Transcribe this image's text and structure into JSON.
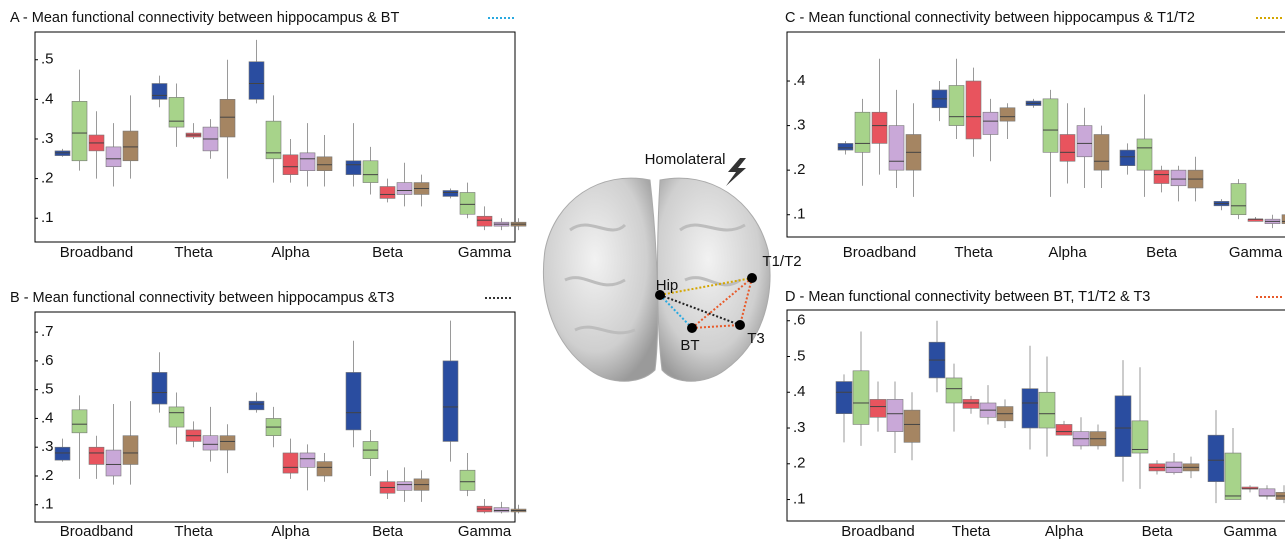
{
  "chart_data": [
    {
      "type": "box",
      "title": "A - Mean functional connectivity between hippocampus & BT",
      "marker_color": "#29a9e0",
      "categories": [
        "Broadband",
        "Theta",
        "Alpha",
        "Beta",
        "Gamma"
      ],
      "ylim": [
        0.04,
        0.57
      ],
      "yticks": [
        {
          "value": 0.1,
          "label": ".1"
        },
        {
          "value": 0.2,
          "label": ".2"
        },
        {
          "value": 0.3,
          "label": ".3"
        },
        {
          "value": 0.4,
          "label": ".4"
        },
        {
          "value": 0.5,
          "label": ".5"
        }
      ],
      "series": [
        {
          "color": "#2a4da0",
          "values": [
            [
              0.255,
              0.258,
              0.265,
              0.27,
              0.275
            ],
            [
              0.38,
              0.4,
              0.41,
              0.44,
              0.46
            ],
            [
              0.39,
              0.4,
              0.44,
              0.495,
              0.55
            ],
            [
              0.18,
              0.21,
              0.235,
              0.245,
              0.34
            ],
            [
              0.15,
              0.155,
              0.165,
              0.17,
              0.175
            ]
          ]
        },
        {
          "color": "#a7d38a",
          "values": [
            [
              0.22,
              0.245,
              0.315,
              0.395,
              0.475
            ],
            [
              0.28,
              0.33,
              0.345,
              0.405,
              0.44
            ],
            [
              0.19,
              0.25,
              0.265,
              0.345,
              0.41
            ],
            [
              0.16,
              0.19,
              0.21,
              0.245,
              0.28
            ],
            [
              0.1,
              0.11,
              0.135,
              0.165,
              0.19
            ]
          ]
        },
        {
          "color": "#e8545e",
          "values": [
            [
              0.2,
              0.27,
              0.29,
              0.31,
              0.37
            ],
            [
              0.3,
              0.305,
              0.31,
              0.315,
              0.34
            ],
            [
              0.19,
              0.21,
              0.23,
              0.26,
              0.3
            ],
            [
              0.14,
              0.15,
              0.16,
              0.18,
              0.2
            ],
            [
              0.07,
              0.08,
              0.095,
              0.105,
              0.13
            ]
          ]
        },
        {
          "color": "#c9a8d8",
          "values": [
            [
              0.18,
              0.23,
              0.25,
              0.28,
              0.34
            ],
            [
              0.25,
              0.27,
              0.3,
              0.33,
              0.35
            ],
            [
              0.18,
              0.22,
              0.25,
              0.265,
              0.34
            ],
            [
              0.13,
              0.16,
              0.17,
              0.19,
              0.24
            ],
            [
              0.07,
              0.08,
              0.085,
              0.09,
              0.1
            ]
          ]
        },
        {
          "color": "#a58562",
          "values": [
            [
              0.2,
              0.245,
              0.28,
              0.32,
              0.41
            ],
            [
              0.2,
              0.305,
              0.355,
              0.4,
              0.5
            ],
            [
              0.18,
              0.22,
              0.235,
              0.255,
              0.31
            ],
            [
              0.13,
              0.16,
              0.175,
              0.19,
              0.21
            ],
            [
              0.07,
              0.08,
              0.085,
              0.09,
              0.1
            ]
          ]
        }
      ]
    },
    {
      "type": "box",
      "title": "B - Mean functional connectivity between hippocampus &T3",
      "marker_color": "#333333",
      "categories": [
        "Broadband",
        "Theta",
        "Alpha",
        "Beta",
        "Gamma"
      ],
      "ylim": [
        0.04,
        0.77
      ],
      "yticks": [
        {
          "value": 0.1,
          "label": ".1"
        },
        {
          "value": 0.2,
          "label": ".2"
        },
        {
          "value": 0.3,
          "label": ".3"
        },
        {
          "value": 0.4,
          "label": ".4"
        },
        {
          "value": 0.5,
          "label": ".5"
        },
        {
          "value": 0.6,
          "label": ".6"
        },
        {
          "value": 0.7,
          "label": ".7"
        }
      ],
      "series": [
        {
          "color": "#2a4da0",
          "values": [
            [
              0.25,
              0.255,
              0.28,
              0.3,
              0.33
            ],
            [
              0.42,
              0.45,
              0.49,
              0.56,
              0.63
            ],
            [
              0.42,
              0.43,
              0.45,
              0.46,
              0.49
            ],
            [
              0.3,
              0.36,
              0.42,
              0.56,
              0.67
            ],
            [
              0.25,
              0.32,
              0.44,
              0.6,
              0.74
            ]
          ]
        },
        {
          "color": "#a7d38a",
          "values": [
            [
              0.19,
              0.35,
              0.38,
              0.43,
              0.48
            ],
            [
              0.31,
              0.37,
              0.42,
              0.44,
              0.49
            ],
            [
              0.3,
              0.34,
              0.37,
              0.4,
              0.44
            ],
            [
              0.2,
              0.26,
              0.29,
              0.32,
              0.36
            ],
            [
              0.13,
              0.15,
              0.18,
              0.22,
              0.28
            ]
          ]
        },
        {
          "color": "#e8545e",
          "values": [
            [
              0.19,
              0.24,
              0.28,
              0.3,
              0.34
            ],
            [
              0.3,
              0.32,
              0.34,
              0.36,
              0.39
            ],
            [
              0.19,
              0.21,
              0.23,
              0.28,
              0.33
            ],
            [
              0.12,
              0.14,
              0.16,
              0.18,
              0.22
            ],
            [
              0.07,
              0.075,
              0.085,
              0.095,
              0.12
            ]
          ]
        },
        {
          "color": "#c9a8d8",
          "values": [
            [
              0.17,
              0.2,
              0.24,
              0.29,
              0.45
            ],
            [
              0.25,
              0.29,
              0.31,
              0.34,
              0.44
            ],
            [
              0.15,
              0.23,
              0.26,
              0.28,
              0.31
            ],
            [
              0.11,
              0.15,
              0.17,
              0.18,
              0.23
            ],
            [
              0.07,
              0.075,
              0.08,
              0.09,
              0.11
            ]
          ]
        },
        {
          "color": "#a58562",
          "values": [
            [
              0.17,
              0.24,
              0.28,
              0.34,
              0.46
            ],
            [
              0.21,
              0.29,
              0.32,
              0.34,
              0.38
            ],
            [
              0.18,
              0.2,
              0.23,
              0.25,
              0.28
            ],
            [
              0.11,
              0.15,
              0.17,
              0.19,
              0.22
            ],
            [
              0.07,
              0.075,
              0.08,
              0.085,
              0.1
            ]
          ]
        }
      ]
    },
    {
      "type": "box",
      "title": "C - Mean functional connectivity between hippocampus & T1/T2",
      "marker_color": "#d4a600",
      "categories": [
        "Broadband",
        "Theta",
        "Alpha",
        "Beta",
        "Gamma"
      ],
      "ylim": [
        0.05,
        0.51
      ],
      "yticks": [
        {
          "value": 0.1,
          "label": ".1"
        },
        {
          "value": 0.2,
          "label": ".2"
        },
        {
          "value": 0.3,
          "label": ".3"
        },
        {
          "value": 0.4,
          "label": ".4"
        }
      ],
      "series": [
        {
          "color": "#2a4da0",
          "values": [
            [
              0.235,
              0.245,
              0.25,
              0.26,
              0.265
            ],
            [
              0.31,
              0.34,
              0.36,
              0.38,
              0.4
            ],
            [
              0.34,
              0.345,
              0.35,
              0.355,
              0.36
            ],
            [
              0.19,
              0.21,
              0.23,
              0.245,
              0.26
            ],
            [
              0.11,
              0.12,
              0.125,
              0.13,
              0.135
            ]
          ]
        },
        {
          "color": "#a7d38a",
          "values": [
            [
              0.165,
              0.24,
              0.26,
              0.33,
              0.36
            ],
            [
              0.27,
              0.3,
              0.32,
              0.39,
              0.45
            ],
            [
              0.14,
              0.24,
              0.29,
              0.36,
              0.38
            ],
            [
              0.14,
              0.2,
              0.25,
              0.27,
              0.37
            ],
            [
              0.09,
              0.1,
              0.12,
              0.17,
              0.18
            ]
          ]
        },
        {
          "color": "#e8545e",
          "values": [
            [
              0.19,
              0.26,
              0.3,
              0.33,
              0.45
            ],
            [
              0.23,
              0.27,
              0.32,
              0.4,
              0.43
            ],
            [
              0.17,
              0.22,
              0.24,
              0.28,
              0.35
            ],
            [
              0.15,
              0.17,
              0.19,
              0.2,
              0.21
            ],
            [
              0.085,
              0.085,
              0.09,
              0.09,
              0.095
            ]
          ]
        },
        {
          "color": "#c9a8d8",
          "values": [
            [
              0.16,
              0.2,
              0.22,
              0.3,
              0.38
            ],
            [
              0.22,
              0.28,
              0.31,
              0.33,
              0.36
            ],
            [
              0.16,
              0.23,
              0.26,
              0.3,
              0.34
            ],
            [
              0.13,
              0.165,
              0.18,
              0.2,
              0.21
            ],
            [
              0.07,
              0.08,
              0.085,
              0.09,
              0.1
            ]
          ]
        },
        {
          "color": "#a58562",
          "values": [
            [
              0.14,
              0.2,
              0.24,
              0.28,
              0.35
            ],
            [
              0.27,
              0.31,
              0.32,
              0.34,
              0.35
            ],
            [
              0.16,
              0.2,
              0.22,
              0.28,
              0.3
            ],
            [
              0.13,
              0.16,
              0.18,
              0.2,
              0.23
            ],
            [
              0.07,
              0.08,
              0.085,
              0.1,
              0.11
            ]
          ]
        }
      ]
    },
    {
      "type": "box",
      "title": "D - Mean functional connectivity between BT, T1/T2 & T3",
      "marker_color": "#e85a2a",
      "categories": [
        "Broadband",
        "Theta",
        "Alpha",
        "Beta",
        "Gamma"
      ],
      "ylim": [
        0.04,
        0.63
      ],
      "yticks": [
        {
          "value": 0.1,
          "label": ".1"
        },
        {
          "value": 0.2,
          "label": ".2"
        },
        {
          "value": 0.3,
          "label": ".3"
        },
        {
          "value": 0.4,
          "label": ".4"
        },
        {
          "value": 0.5,
          "label": ".5"
        },
        {
          "value": 0.6,
          "label": ".6"
        }
      ],
      "series": [
        {
          "color": "#2a4da0",
          "values": [
            [
              0.26,
              0.34,
              0.4,
              0.43,
              0.45
            ],
            [
              0.4,
              0.44,
              0.49,
              0.54,
              0.6
            ],
            [
              0.24,
              0.3,
              0.37,
              0.41,
              0.53
            ],
            [
              0.15,
              0.22,
              0.3,
              0.39,
              0.49
            ],
            [
              0.09,
              0.15,
              0.21,
              0.28,
              0.35
            ]
          ]
        },
        {
          "color": "#a7d38a",
          "values": [
            [
              0.25,
              0.31,
              0.37,
              0.46,
              0.57
            ],
            [
              0.29,
              0.37,
              0.41,
              0.44,
              0.48
            ],
            [
              0.22,
              0.3,
              0.34,
              0.4,
              0.5
            ],
            [
              0.13,
              0.23,
              0.24,
              0.32,
              0.47
            ],
            [
              0.1,
              0.1,
              0.11,
              0.23,
              0.3
            ]
          ]
        },
        {
          "color": "#e8545e",
          "values": [
            [
              0.29,
              0.33,
              0.36,
              0.38,
              0.43
            ],
            [
              0.34,
              0.355,
              0.37,
              0.38,
              0.39
            ],
            [
              0.28,
              0.28,
              0.29,
              0.31,
              0.32
            ],
            [
              0.17,
              0.18,
              0.19,
              0.2,
              0.21
            ],
            [
              0.12,
              0.13,
              0.13,
              0.135,
              0.14
            ]
          ]
        },
        {
          "color": "#c9a8d8",
          "values": [
            [
              0.23,
              0.29,
              0.34,
              0.38,
              0.43
            ],
            [
              0.31,
              0.33,
              0.35,
              0.37,
              0.42
            ],
            [
              0.24,
              0.25,
              0.27,
              0.29,
              0.33
            ],
            [
              0.17,
              0.175,
              0.19,
              0.205,
              0.23
            ],
            [
              0.1,
              0.11,
              0.11,
              0.13,
              0.14
            ]
          ]
        },
        {
          "color": "#a58562",
          "values": [
            [
              0.21,
              0.26,
              0.31,
              0.35,
              0.4
            ],
            [
              0.3,
              0.32,
              0.34,
              0.36,
              0.38
            ],
            [
              0.24,
              0.25,
              0.27,
              0.29,
              0.31
            ],
            [
              0.16,
              0.18,
              0.19,
              0.2,
              0.22
            ],
            [
              0.09,
              0.1,
              0.11,
              0.12,
              0.14
            ]
          ]
        }
      ]
    }
  ],
  "diagram": {
    "labels": {
      "view": "Homolateral",
      "hip": "Hip",
      "t1t2": "T1/T2",
      "bt": "BT",
      "t3": "T3"
    }
  }
}
